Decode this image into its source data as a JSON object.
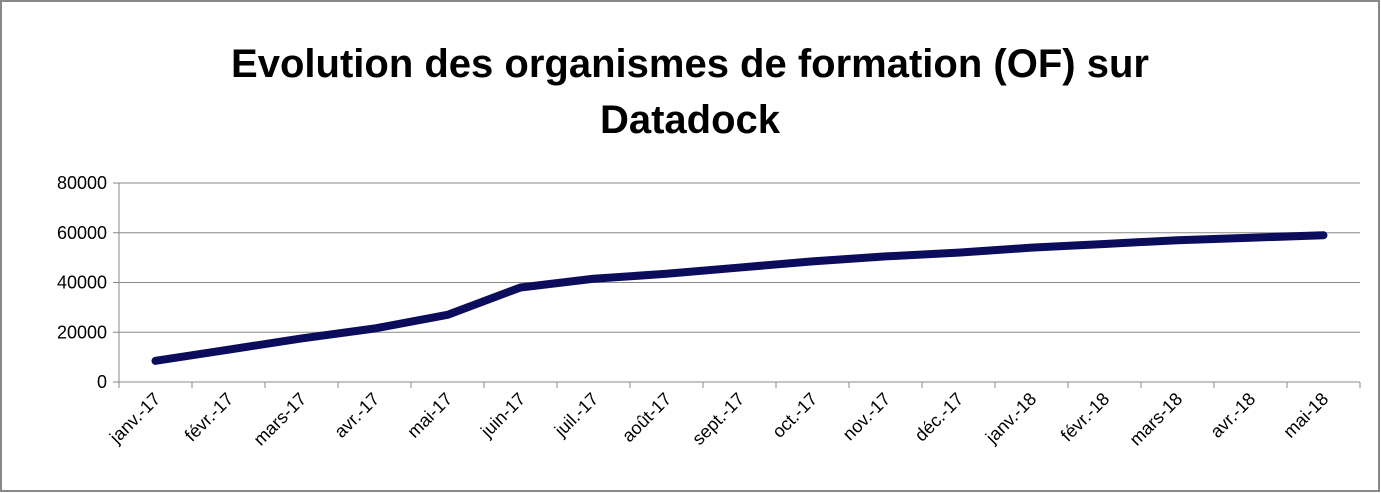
{
  "chart_data": {
    "type": "line",
    "title": "Evolution des organismes de formation (OF) sur Datadock",
    "categories": [
      "janv.-17",
      "févr.-17",
      "mars-17",
      "avr.-17",
      "mai-17",
      "juin-17",
      "juil.-17",
      "août-17",
      "sept.-17",
      "oct.-17",
      "nov.-17",
      "déc.-17",
      "janv.-18",
      "févr.-18",
      "mars-18",
      "avr.-18",
      "mai-18"
    ],
    "series": [
      {
        "name": "OF",
        "color": "#0c0c5c",
        "values": [
          8500,
          13000,
          17500,
          21500,
          27000,
          38000,
          41500,
          43500,
          46000,
          48500,
          50500,
          52000,
          54000,
          55500,
          57000,
          58000,
          59000
        ]
      }
    ],
    "ylim": [
      0,
      80000
    ],
    "yticks": [
      0,
      20000,
      40000,
      60000,
      80000
    ],
    "grid": true
  }
}
